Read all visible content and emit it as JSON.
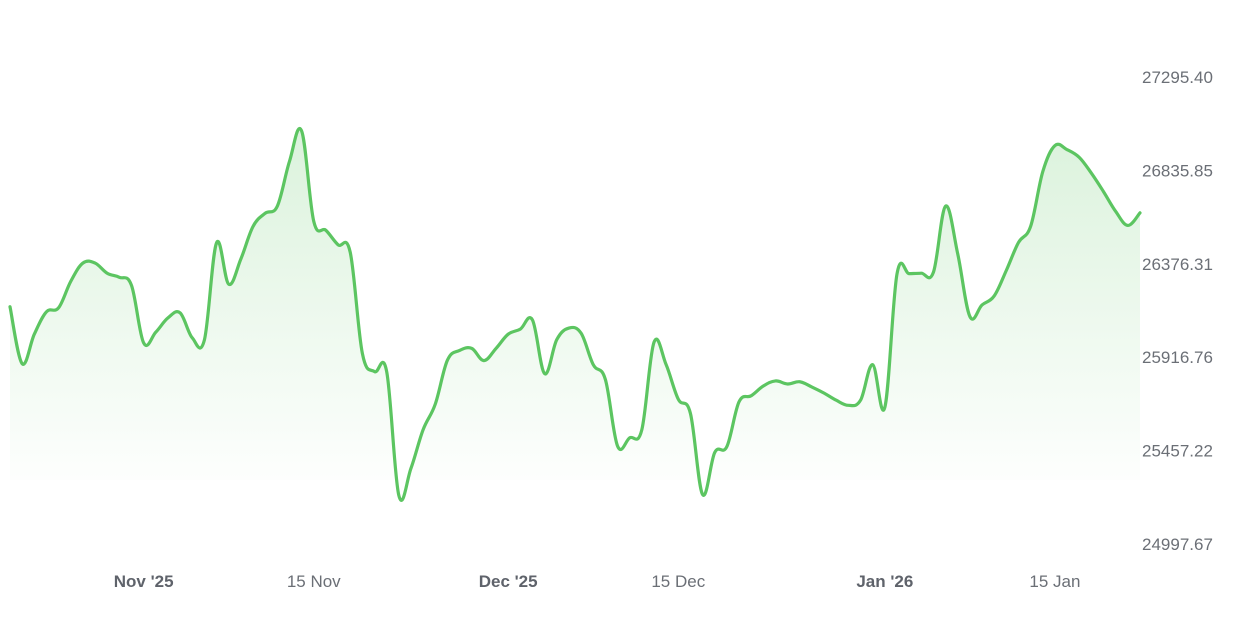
{
  "chart_data": {
    "type": "area",
    "title": "",
    "xlabel": "",
    "ylabel": "",
    "grid": false,
    "line_color": "#5cc561",
    "fill_color": "#5cc561",
    "y_axis_position": "right",
    "ylim": [
      24997.67,
      27295.4
    ],
    "xlim": [
      "2025-10-21",
      "2026-01-22"
    ],
    "y_ticks": [
      "27295.40",
      "26835.85",
      "26376.31",
      "25916.76",
      "25457.22",
      "24997.67"
    ],
    "x_ticks": [
      {
        "date": "2025-11-01",
        "label": "Nov '25",
        "major": true
      },
      {
        "date": "2025-11-15",
        "label": "15 Nov",
        "major": false
      },
      {
        "date": "2025-12-01",
        "label": "Dec '25",
        "major": true
      },
      {
        "date": "2025-12-15",
        "label": "15 Dec",
        "major": false
      },
      {
        "date": "2026-01-01",
        "label": "Jan '26",
        "major": true
      },
      {
        "date": "2026-01-15",
        "label": "15 Jan",
        "major": false
      }
    ],
    "series": [
      {
        "x": [
          "2025-10-21",
          "2025-10-22",
          "2025-10-23",
          "2025-10-24",
          "2025-10-25",
          "2025-10-26",
          "2025-10-27",
          "2025-10-28",
          "2025-10-29",
          "2025-10-30",
          "2025-10-31",
          "2025-11-01",
          "2025-11-02",
          "2025-11-03",
          "2025-11-04",
          "2025-11-05",
          "2025-11-06",
          "2025-11-07",
          "2025-11-08",
          "2025-11-09",
          "2025-11-10",
          "2025-11-11",
          "2025-11-12",
          "2025-11-13",
          "2025-11-14",
          "2025-11-15",
          "2025-11-16",
          "2025-11-17",
          "2025-11-18",
          "2025-11-19",
          "2025-11-20",
          "2025-11-21",
          "2025-11-22",
          "2025-11-23",
          "2025-11-24",
          "2025-11-25",
          "2025-11-26",
          "2025-11-27",
          "2025-11-28",
          "2025-11-29",
          "2025-11-30",
          "2025-12-01",
          "2025-12-02",
          "2025-12-03",
          "2025-12-04",
          "2025-12-05",
          "2025-12-06",
          "2025-12-07",
          "2025-12-08",
          "2025-12-09",
          "2025-12-10",
          "2025-12-11",
          "2025-12-12",
          "2025-12-13",
          "2025-12-14",
          "2025-12-15",
          "2025-12-16",
          "2025-12-17",
          "2025-12-18",
          "2025-12-19",
          "2025-12-20",
          "2025-12-21",
          "2025-12-22",
          "2025-12-23",
          "2025-12-24",
          "2025-12-25",
          "2025-12-26",
          "2025-12-27",
          "2025-12-28",
          "2025-12-29",
          "2025-12-30",
          "2025-12-31",
          "2026-01-01",
          "2026-01-02",
          "2026-01-03",
          "2026-01-04",
          "2026-01-05",
          "2026-01-06",
          "2026-01-07",
          "2026-01-08",
          "2026-01-09",
          "2026-01-10",
          "2026-01-11",
          "2026-01-12",
          "2026-01-13",
          "2026-01-14",
          "2026-01-15",
          "2026-01-16",
          "2026-01-17",
          "2026-01-18",
          "2026-01-19",
          "2026-01-20",
          "2026-01-21",
          "2026-01-22"
        ],
        "values": [
          26165,
          25885,
          26030,
          26140,
          26160,
          26290,
          26380,
          26380,
          26330,
          26310,
          26270,
          25987,
          26040,
          26110,
          26135,
          26012,
          26002,
          26480,
          26276,
          26400,
          26560,
          26625,
          26660,
          26880,
          27030,
          26585,
          26541,
          26470,
          26433,
          25935,
          25846,
          25846,
          25237,
          25370,
          25560,
          25686,
          25902,
          25950,
          25960,
          25900,
          25960,
          26030,
          26055,
          26100,
          25836,
          26003,
          26060,
          26035,
          25880,
          25807,
          25480,
          25520,
          25560,
          25990,
          25880,
          25710,
          25640,
          25241,
          25448,
          25477,
          25697,
          25727,
          25775,
          25800,
          25785,
          25796,
          25770,
          25740,
          25705,
          25680,
          25705,
          25880,
          25670,
          26326,
          26328,
          26330,
          26335,
          26660,
          26425,
          26117,
          26174,
          26218,
          26344,
          26481,
          26561,
          26830,
          26958,
          26938,
          26900,
          26822,
          26731,
          26634,
          26565,
          26627
        ]
      }
    ]
  }
}
